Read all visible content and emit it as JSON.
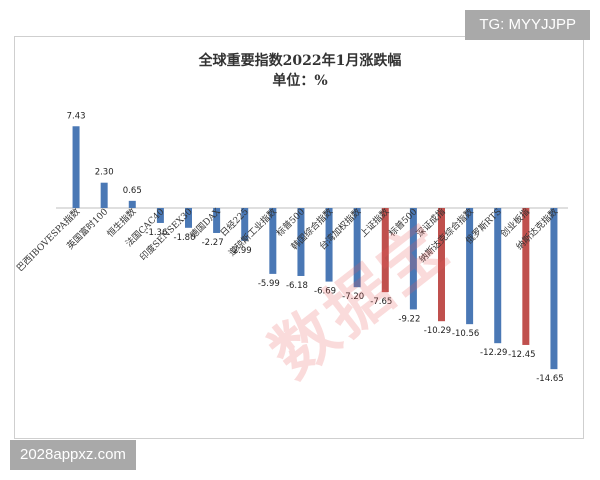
{
  "overlay": {
    "top_right_tag": "TG: MYYJJPP",
    "bottom_left_tag": "2028appxz.com",
    "watermark": "数据宝"
  },
  "chart_data": {
    "type": "bar",
    "title": "全球重要指数2022年1月涨跌幅",
    "subtitle": "单位：%",
    "categories": [
      "巴西IBOVESPA指数",
      "英国富时100",
      "恒生指数",
      "法国CAC40",
      "印度SENSEX30",
      "德国DAX",
      "日经225",
      "道琼斯工业指数",
      "标普500",
      "韩国综合指数",
      "台湾加权指数",
      "上证指数",
      "标普500",
      "深证成指",
      "纳斯达克综合指数",
      "俄罗斯RTS",
      "创业板指",
      "纳斯达克指数"
    ],
    "values": [
      7.43,
      2.3,
      0.65,
      -1.36,
      -1.8,
      -2.27,
      -2.99,
      -5.99,
      -6.18,
      -6.69,
      -7.2,
      -7.65,
      -9.22,
      -10.29,
      -10.56,
      -12.29,
      -12.45,
      -14.65
    ],
    "value_labels": [
      "7.43",
      "2.30",
      "0.65",
      "-1.36",
      "-1.80",
      "-2.27",
      "-2.99",
      "-5.99",
      "-6.18",
      "-6.69",
      "-7.20",
      "-7.65",
      "-9.22",
      "-10.29",
      "-10.56",
      "-12.29",
      "-12.45",
      "-14.65"
    ],
    "highlighted": [
      false,
      false,
      false,
      false,
      false,
      false,
      false,
      false,
      false,
      false,
      false,
      true,
      false,
      true,
      false,
      false,
      true,
      false
    ],
    "colors": {
      "default": "#4a78b5",
      "highlight": "#c0504d",
      "axis": "#bfbfbf",
      "text": "#222222"
    },
    "ylim": [
      -17,
      8
    ],
    "xlabel": "",
    "ylabel": "",
    "grid": false,
    "legend": "none"
  }
}
